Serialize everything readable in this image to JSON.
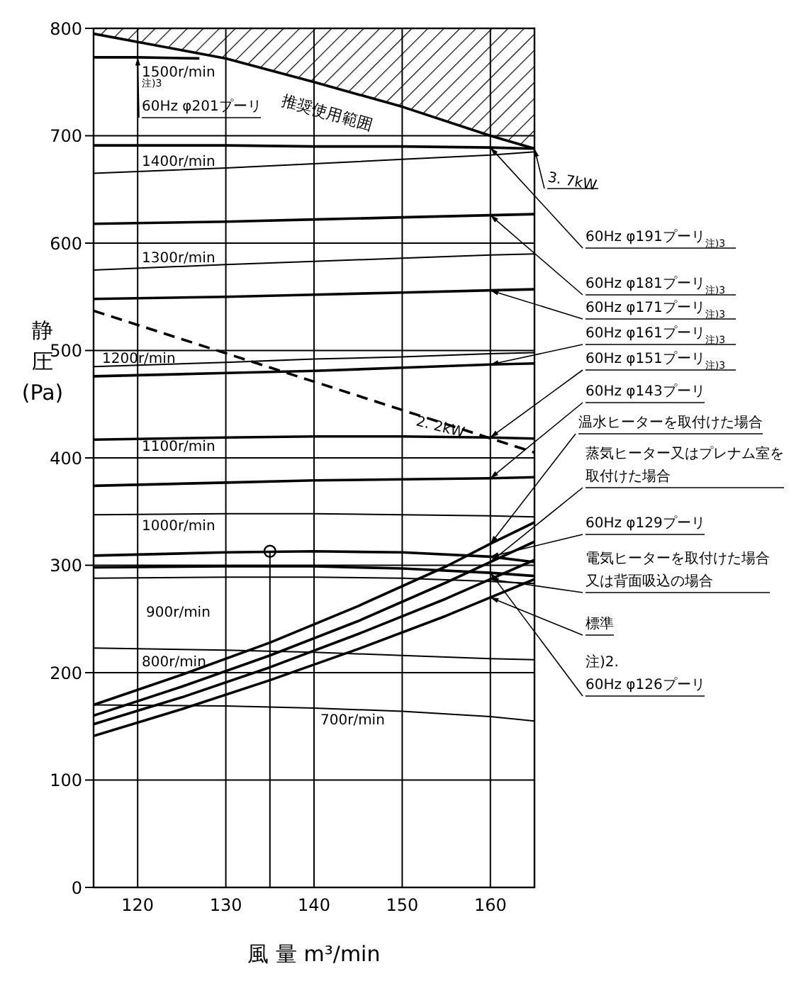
{
  "chart_data": {
    "type": "line",
    "xlabel": "風 量 m³/min",
    "ylabel": "静圧(Pa)",
    "xlim": [
      115,
      165
    ],
    "ylim": [
      0,
      800
    ],
    "xticks": [
      120,
      130,
      140,
      150,
      160
    ],
    "yticks": [
      0,
      100,
      200,
      300,
      400,
      500,
      600,
      700,
      800
    ],
    "grid": true,
    "marker": "none",
    "line_style": "solid",
    "series": [
      {
        "name": "$^{注)3}$\n60Hz φ201プーリ",
        "color": "#000000",
        "x": [
          115,
          120,
          127
        ],
        "values": [
          773,
          773,
          772
        ]
      },
      {
        "name": "3. 7kW",
        "color": "#000000",
        "x": [
          115,
          130,
          140,
          150,
          160,
          165
        ],
        "values": [
          795,
          772,
          750,
          727,
          700,
          688
        ],
        "lower": [
          795,
          772,
          750,
          727,
          700,
          688
        ],
        "upper": [
          800,
          800,
          800,
          800,
          800,
          800
        ]
      },
      {
        "name": "60Hz φ191プーリ$_{注)3}$",
        "color": "#000000",
        "x": [
          115,
          130,
          140,
          150,
          160,
          165
        ],
        "values": [
          691,
          691,
          690,
          690,
          689,
          688
        ]
      },
      {
        "name": "60Hz φ181プーリ$_{注)3}$",
        "color": "#000000",
        "x": [
          115,
          130,
          140,
          150,
          160,
          165
        ],
        "values": [
          618,
          620,
          622,
          624,
          626,
          627
        ]
      },
      {
        "name": "60Hz φ171プーリ$_{注)3}$",
        "color": "#000000",
        "x": [
          115,
          130,
          140,
          150,
          160,
          165
        ],
        "values": [
          548,
          550,
          552,
          554,
          556,
          557
        ]
      },
      {
        "name": "60Hz φ161プーリ$_{注)3}$",
        "color": "#000000",
        "x": [
          115,
          130,
          140,
          150,
          160,
          165
        ],
        "values": [
          476,
          479,
          481,
          484,
          487,
          488
        ]
      },
      {
        "name": "60Hz φ151プーリ$_{注)3}$",
        "color": "#000000",
        "x": [
          115,
          130,
          140,
          150,
          160,
          165
        ],
        "values": [
          417,
          419,
          420,
          420,
          419,
          418
        ]
      },
      {
        "name": "60Hz φ143プーリ",
        "color": "#000000",
        "x": [
          115,
          130,
          140,
          150,
          160,
          165
        ],
        "values": [
          374,
          377,
          379,
          380,
          381,
          382
        ]
      },
      {
        "name": "2. 2kW",
        "color": "#000000",
        "line_style": "dashed",
        "x": [
          115,
          165
        ],
        "values": [
          537,
          405
        ]
      },
      {
        "name": "温水ヒーターを取付けた場合",
        "color": "#000000",
        "x": [
          115,
          125,
          135,
          145,
          155,
          160,
          165
        ],
        "values": [
          170,
          198,
          228,
          262,
          299,
          320,
          340
        ]
      },
      {
        "name": "蒸気ヒーター又はプレナム室を取付けた場合",
        "color": "#000000",
        "x": [
          115,
          125,
          135,
          145,
          155,
          160,
          165
        ],
        "values": [
          160,
          187,
          216,
          248,
          284,
          303,
          322
        ]
      },
      {
        "name": "60Hz φ129プーリ",
        "color": "#000000",
        "x": [
          115,
          130,
          140,
          150,
          160,
          165
        ],
        "values": [
          309,
          312,
          313,
          312,
          308,
          303
        ]
      },
      {
        "name": "電気ヒーターを取付けた場合又は背面吸込の場合",
        "color": "#000000",
        "x": [
          115,
          125,
          135,
          145,
          155,
          160,
          165
        ],
        "values": [
          152,
          177,
          205,
          236,
          269,
          287,
          305
        ]
      },
      {
        "name": "標準",
        "color": "#000000",
        "x": [
          115,
          125,
          135,
          145,
          155,
          160,
          165
        ],
        "values": [
          141,
          166,
          193,
          222,
          253,
          270,
          287
        ]
      },
      {
        "name": "注)2.\n60Hz φ126プーリ",
        "color": "#000000",
        "x": [
          115,
          130,
          140,
          150,
          160,
          165
        ],
        "values": [
          298,
          299,
          299,
          297,
          293,
          290
        ]
      },
      {
        "color": "#000000",
        "x": [
          115,
          130,
          140,
          150,
          160,
          165
        ],
        "values": [
          665,
          670,
          674,
          678,
          682,
          685
        ]
      },
      {
        "color": "#000000",
        "x": [
          115,
          130,
          140,
          150,
          160,
          165
        ],
        "values": [
          575,
          580,
          583,
          586,
          589,
          590
        ]
      },
      {
        "color": "#000000",
        "x": [
          115,
          130,
          140,
          150,
          160,
          165
        ],
        "values": [
          485,
          489,
          492,
          494,
          497,
          498
        ]
      },
      {
        "color": "#000000",
        "x": [
          115,
          130,
          140,
          150,
          160,
          165
        ],
        "values": [
          347,
          348,
          348,
          347,
          346,
          345
        ]
      },
      {
        "color": "#000000",
        "x": [
          115,
          130,
          140,
          150,
          160,
          165
        ],
        "values": [
          288,
          289,
          289,
          288,
          285,
          283
        ]
      },
      {
        "color": "#000000",
        "x": [
          115,
          130,
          140,
          150,
          160,
          165
        ],
        "values": [
          223,
          221,
          219,
          216,
          213,
          212
        ]
      },
      {
        "color": "#000000",
        "x": [
          115,
          130,
          140,
          150,
          160,
          165
        ],
        "values": [
          170,
          169,
          167,
          164,
          159,
          155
        ]
      },
      {
        "color": "#000000",
        "x": [
          135,
          135
        ],
        "values": [
          0,
          313
        ]
      },
      {
        "type": "scatter",
        "marker": "circle",
        "color": "#000000",
        "x": [
          135
        ],
        "values": [
          313
        ]
      }
    ],
    "annotations": [
      "推奨使用範囲",
      "1500r/min",
      "1400r/min",
      "1300r/min",
      "1200r/min",
      "1100r/min",
      "1000r/min",
      "900r/min",
      "800r/min",
      "700r/min"
    ]
  }
}
